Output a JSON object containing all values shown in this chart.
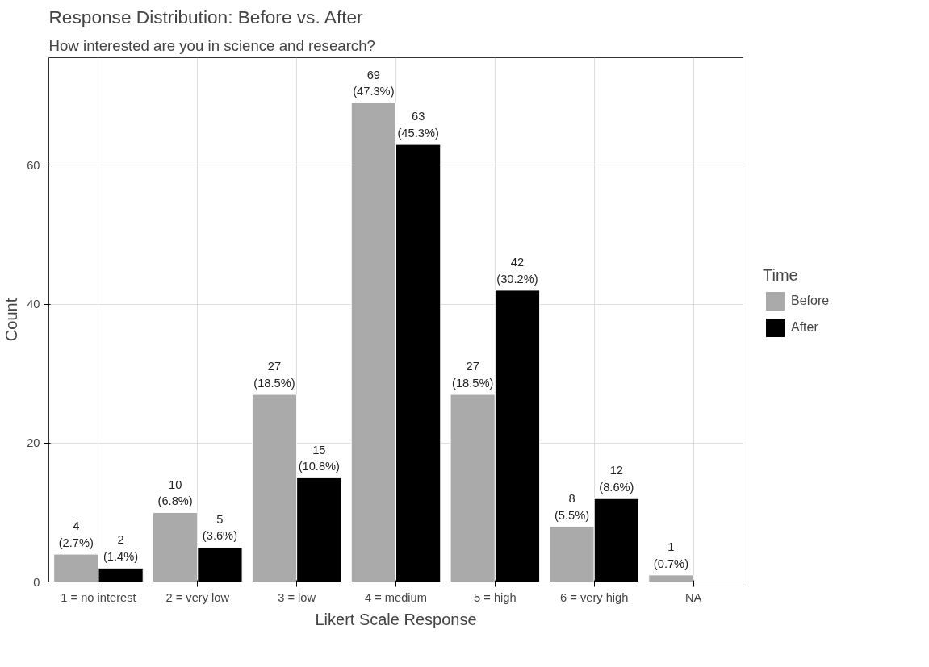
{
  "chart_data": {
    "type": "bar",
    "title": "Response Distribution: Before vs. After",
    "subtitle": "How interested are you in science and research?",
    "xlabel": "Likert Scale Response",
    "ylabel": "Count",
    "legend_title": "Time",
    "categories": [
      "1 = no interest",
      "2 = very low",
      "3 = low",
      "4 = medium",
      "5 = high",
      "6 = very high",
      "NA"
    ],
    "series": [
      {
        "name": "Before",
        "color": "#aaaaaa",
        "values": [
          4,
          10,
          27,
          69,
          27,
          8,
          1
        ],
        "value_labels": [
          "4\n(2.7%)",
          "10\n(6.8%)",
          "27\n(18.5%)",
          "69\n(47.3%)",
          "27\n(18.5%)",
          "8\n(5.5%)",
          "1\n(0.7%)"
        ]
      },
      {
        "name": "After",
        "color": "#000000",
        "values": [
          2,
          5,
          15,
          63,
          42,
          12,
          null
        ],
        "value_labels": [
          "2\n(1.4%)",
          "5\n(3.6%)",
          "15\n(10.8%)",
          "63\n(45.3%)",
          "42\n(30.2%)",
          "12\n(8.6%)",
          null
        ]
      }
    ],
    "ylim": [
      0,
      75.5
    ],
    "yticks": [
      0,
      20,
      40,
      60
    ],
    "grid": true,
    "legend": "right"
  }
}
